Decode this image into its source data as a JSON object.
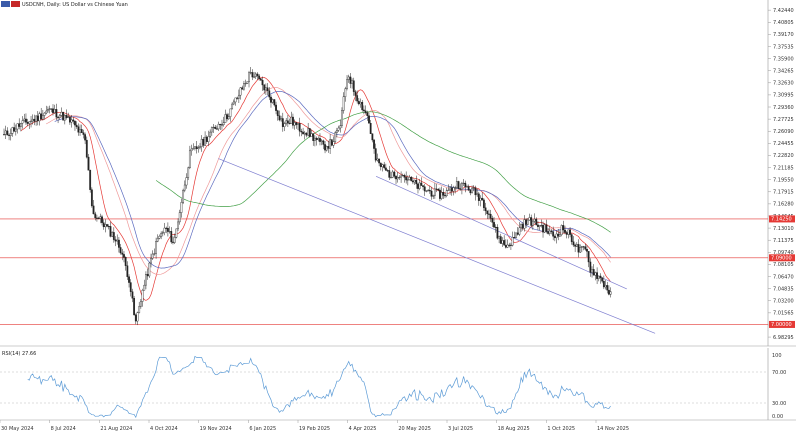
{
  "header": {
    "symbol_text": "USDCNH, Daily:  US Dollar vs Chinese Yuan",
    "flag_colors": [
      "#3b5ba9",
      "#c62828"
    ]
  },
  "rsi_panel": {
    "label": "RSI(14) 27.66"
  },
  "colors": {
    "candle": "#222222",
    "ma_short": "#ef9a9a",
    "ma_mid": "#e53935",
    "ma_blue": "#5c6bc0",
    "ma_long": "#43a047",
    "channel": "#7e7ed0",
    "hline": "#e53935",
    "tag_bg": "#e53935",
    "rsi": "#5c9bd6",
    "axis": "#999999"
  },
  "chart_data": {
    "type": "candlestick",
    "price_axis": {
      "ylim": [
        6.979,
        7.43
      ],
      "ticks": [
        "7.42440",
        "7.40805",
        "7.39170",
        "7.37535",
        "7.35900",
        "7.34265",
        "7.32630",
        "7.30995",
        "7.29360",
        "7.27725",
        "7.26090",
        "7.24455",
        "7.22820",
        "7.21185",
        "7.19550",
        "7.17915",
        "7.16280",
        "7.14645",
        "7.13010",
        "7.11375",
        "7.09740",
        "7.08105",
        "7.06470",
        "7.04835",
        "7.03200",
        "7.01565",
        "6.99930",
        "6.98295"
      ]
    },
    "time_axis": {
      "labels": [
        "30 May 2024",
        "8 Jul 2024",
        "21 Aug 2024",
        "4 Oct 2024",
        "19 Nov 2024",
        "6 Jan 2025",
        "19 Feb 2025",
        "4 Apr 2025",
        "20 May 2025",
        "3 Jul 2025",
        "18 Aug 2025",
        "1 Oct 2025",
        "14 Nov 2025"
      ]
    },
    "horizontal_levels": [
      {
        "value": 7.1425,
        "tag": "7.14250"
      },
      {
        "value": 7.09,
        "tag": "7.09000"
      },
      {
        "value": 7.0,
        "tag": "7.00000"
      }
    ],
    "channel": {
      "upper": [
        [
          7.2,
          2025.33
        ],
        [
          7.048,
          2025.95
        ]
      ],
      "lower": [
        [
          7.224,
          2024.94
        ],
        [
          6.988,
          2026.02
        ]
      ]
    },
    "close_path": [
      {
        "t": 2024.41,
        "c": 7.255
      },
      {
        "t": 2024.45,
        "c": 7.27
      },
      {
        "t": 2024.49,
        "c": 7.278
      },
      {
        "t": 2024.52,
        "c": 7.29
      },
      {
        "t": 2024.55,
        "c": 7.283
      },
      {
        "t": 2024.58,
        "c": 7.272
      },
      {
        "t": 2024.61,
        "c": 7.25
      },
      {
        "t": 2024.63,
        "c": 7.15
      },
      {
        "t": 2024.65,
        "c": 7.14
      },
      {
        "t": 2024.68,
        "c": 7.12
      },
      {
        "t": 2024.7,
        "c": 7.1
      },
      {
        "t": 2024.72,
        "c": 7.06
      },
      {
        "t": 2024.735,
        "c": 7.0
      },
      {
        "t": 2024.75,
        "c": 7.04
      },
      {
        "t": 2024.77,
        "c": 7.08
      },
      {
        "t": 2024.79,
        "c": 7.115
      },
      {
        "t": 2024.81,
        "c": 7.13
      },
      {
        "t": 2024.83,
        "c": 7.11
      },
      {
        "t": 2024.85,
        "c": 7.17
      },
      {
        "t": 2024.87,
        "c": 7.23
      },
      {
        "t": 2024.9,
        "c": 7.245
      },
      {
        "t": 2024.93,
        "c": 7.265
      },
      {
        "t": 2024.96,
        "c": 7.28
      },
      {
        "t": 2024.98,
        "c": 7.3
      },
      {
        "t": 2025.0,
        "c": 7.32
      },
      {
        "t": 2025.02,
        "c": 7.34
      },
      {
        "t": 2025.04,
        "c": 7.33
      },
      {
        "t": 2025.06,
        "c": 7.315
      },
      {
        "t": 2025.08,
        "c": 7.295
      },
      {
        "t": 2025.1,
        "c": 7.27
      },
      {
        "t": 2025.12,
        "c": 7.275
      },
      {
        "t": 2025.14,
        "c": 7.265
      },
      {
        "t": 2025.16,
        "c": 7.26
      },
      {
        "t": 2025.18,
        "c": 7.25
      },
      {
        "t": 2025.2,
        "c": 7.24
      },
      {
        "t": 2025.22,
        "c": 7.245
      },
      {
        "t": 2025.24,
        "c": 7.265
      },
      {
        "t": 2025.26,
        "c": 7.34
      },
      {
        "t": 2025.28,
        "c": 7.31
      },
      {
        "t": 2025.29,
        "c": 7.3
      },
      {
        "t": 2025.31,
        "c": 7.28
      },
      {
        "t": 2025.33,
        "c": 7.22
      },
      {
        "t": 2025.35,
        "c": 7.21
      },
      {
        "t": 2025.37,
        "c": 7.2
      },
      {
        "t": 2025.39,
        "c": 7.205
      },
      {
        "t": 2025.41,
        "c": 7.195
      },
      {
        "t": 2025.43,
        "c": 7.188
      },
      {
        "t": 2025.45,
        "c": 7.182
      },
      {
        "t": 2025.47,
        "c": 7.178
      },
      {
        "t": 2025.49,
        "c": 7.175
      },
      {
        "t": 2025.51,
        "c": 7.18
      },
      {
        "t": 2025.53,
        "c": 7.19
      },
      {
        "t": 2025.55,
        "c": 7.186
      },
      {
        "t": 2025.57,
        "c": 7.18
      },
      {
        "t": 2025.59,
        "c": 7.17
      },
      {
        "t": 2025.61,
        "c": 7.15
      },
      {
        "t": 2025.63,
        "c": 7.12
      },
      {
        "t": 2025.65,
        "c": 7.105
      },
      {
        "t": 2025.67,
        "c": 7.115
      },
      {
        "t": 2025.69,
        "c": 7.135
      },
      {
        "t": 2025.71,
        "c": 7.14
      },
      {
        "t": 2025.73,
        "c": 7.135
      },
      {
        "t": 2025.75,
        "c": 7.128
      },
      {
        "t": 2025.77,
        "c": 7.118
      },
      {
        "t": 2025.79,
        "c": 7.13
      },
      {
        "t": 2025.81,
        "c": 7.12
      },
      {
        "t": 2025.83,
        "c": 7.1
      },
      {
        "t": 2025.85,
        "c": 7.1
      },
      {
        "t": 2025.86,
        "c": 7.075
      },
      {
        "t": 2025.88,
        "c": 7.065
      },
      {
        "t": 2025.9,
        "c": 7.05
      },
      {
        "t": 2025.91,
        "c": 7.04
      }
    ]
  }
}
